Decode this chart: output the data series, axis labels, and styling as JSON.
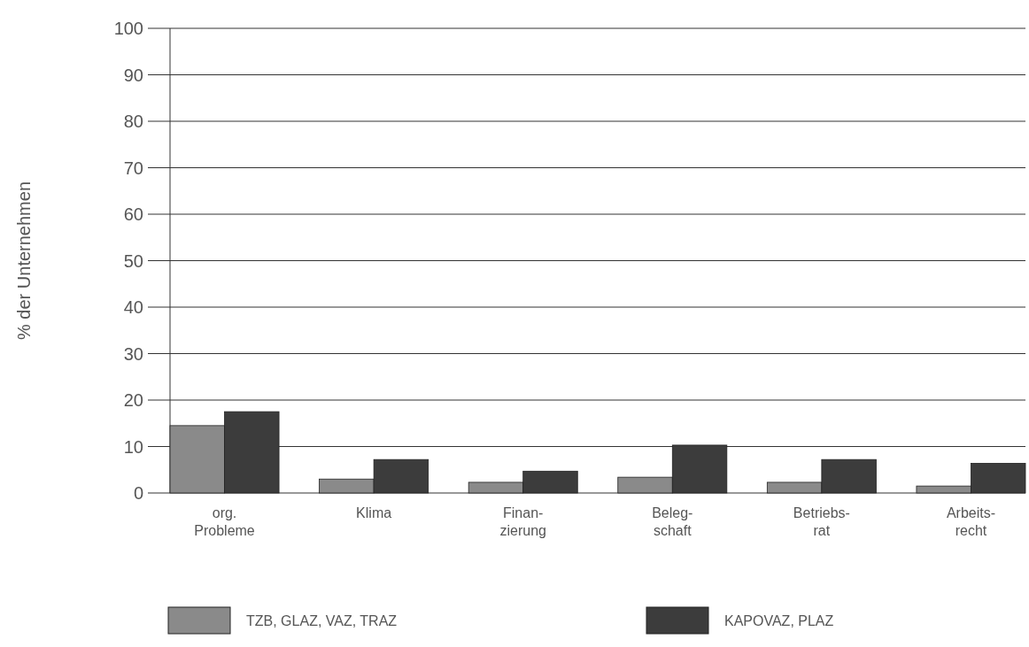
{
  "chart_data": {
    "type": "bar",
    "ylabel": "% der Unternehmen",
    "categories": [
      "org.\nProbleme",
      "Klima",
      "Finan-\nzierung",
      "Beleg-\nschaft",
      "Betriebs-\nrat",
      "Arbeits-\nrecht"
    ],
    "series": [
      {
        "name": "TZB, GLAZ, VAZ, TRAZ",
        "color": "#8a8a8a",
        "values": [
          14.5,
          3.0,
          2.3,
          3.4,
          2.3,
          1.5
        ]
      },
      {
        "name": "KAPOVAZ, PLAZ",
        "color": "#3c3c3c",
        "values": [
          17.5,
          7.2,
          4.7,
          10.3,
          7.2,
          6.4
        ]
      }
    ],
    "ylim": [
      0,
      100
    ],
    "yticks": [
      0,
      10,
      20,
      30,
      40,
      50,
      60,
      70,
      80,
      90,
      100
    ],
    "grid": "y",
    "legend": "bottom"
  }
}
